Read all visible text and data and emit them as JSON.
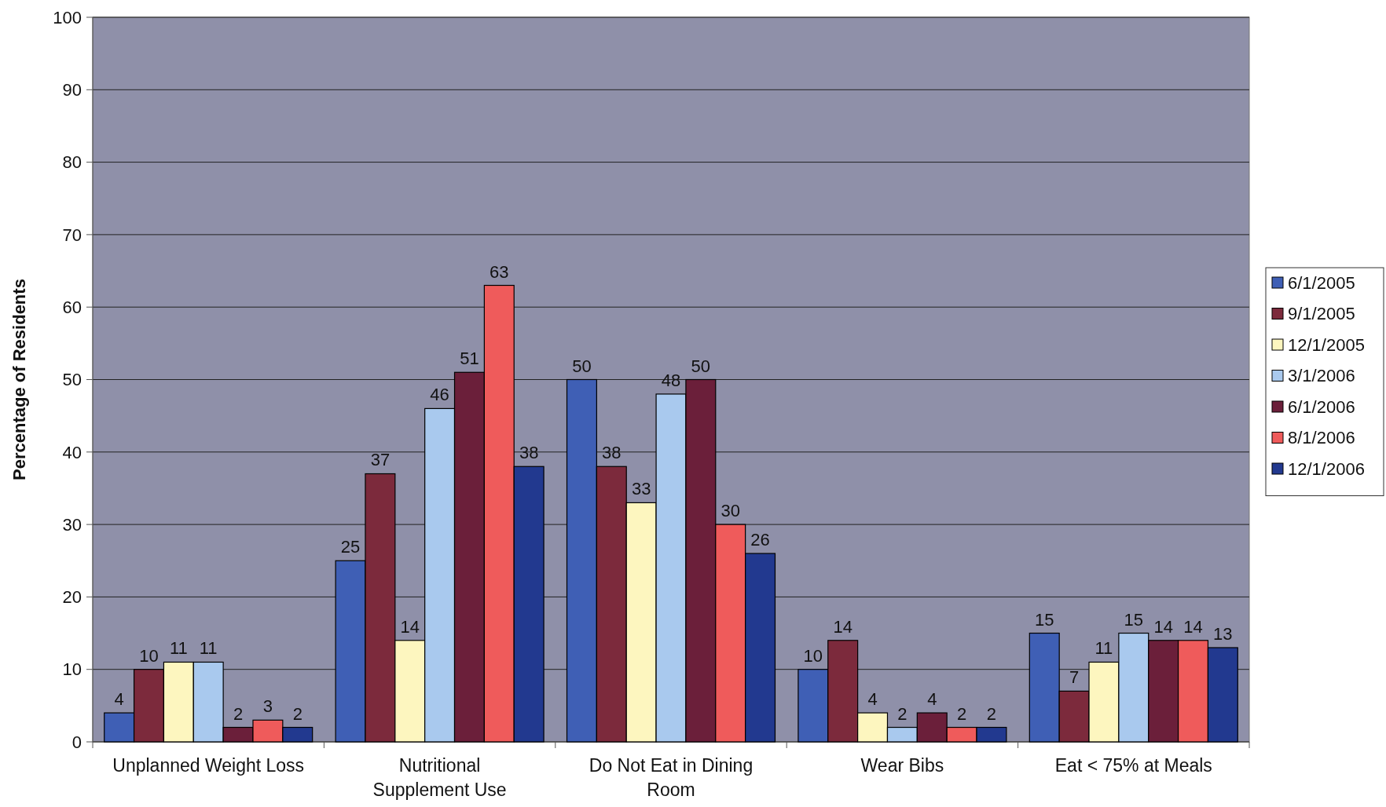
{
  "chart_data": {
    "type": "bar",
    "ylabel": "Percentage of Residents",
    "categories": [
      "Unplanned Weight Loss",
      "Nutritional Supplement Use",
      "Do Not Eat in Dining Room",
      "Wear Bibs",
      "Eat < 75% at Meals"
    ],
    "series": [
      {
        "name": "6/1/2005",
        "color": "#3f5fb5",
        "values": [
          4,
          25,
          50,
          10,
          15
        ]
      },
      {
        "name": "9/1/2005",
        "color": "#7c2a3c",
        "values": [
          10,
          37,
          38,
          14,
          7
        ]
      },
      {
        "name": "12/1/2005",
        "color": "#fdf6bf",
        "values": [
          11,
          14,
          33,
          4,
          11
        ]
      },
      {
        "name": "3/1/2006",
        "color": "#a9c9ee",
        "values": [
          11,
          46,
          48,
          2,
          15
        ]
      },
      {
        "name": "6/1/2006",
        "color": "#6b1f3a",
        "values": [
          2,
          51,
          50,
          4,
          14
        ]
      },
      {
        "name": "8/1/2006",
        "color": "#ef5b5b",
        "values": [
          3,
          63,
          30,
          2,
          14
        ]
      },
      {
        "name": "12/1/2006",
        "color": "#22398f",
        "values": [
          2,
          38,
          26,
          2,
          13
        ]
      }
    ],
    "ylim": [
      0,
      100
    ],
    "yticks": [
      0,
      10,
      20,
      30,
      40,
      50,
      60,
      70,
      80,
      90,
      100
    ],
    "grid": "y",
    "legend": "right",
    "data_labels": true
  }
}
